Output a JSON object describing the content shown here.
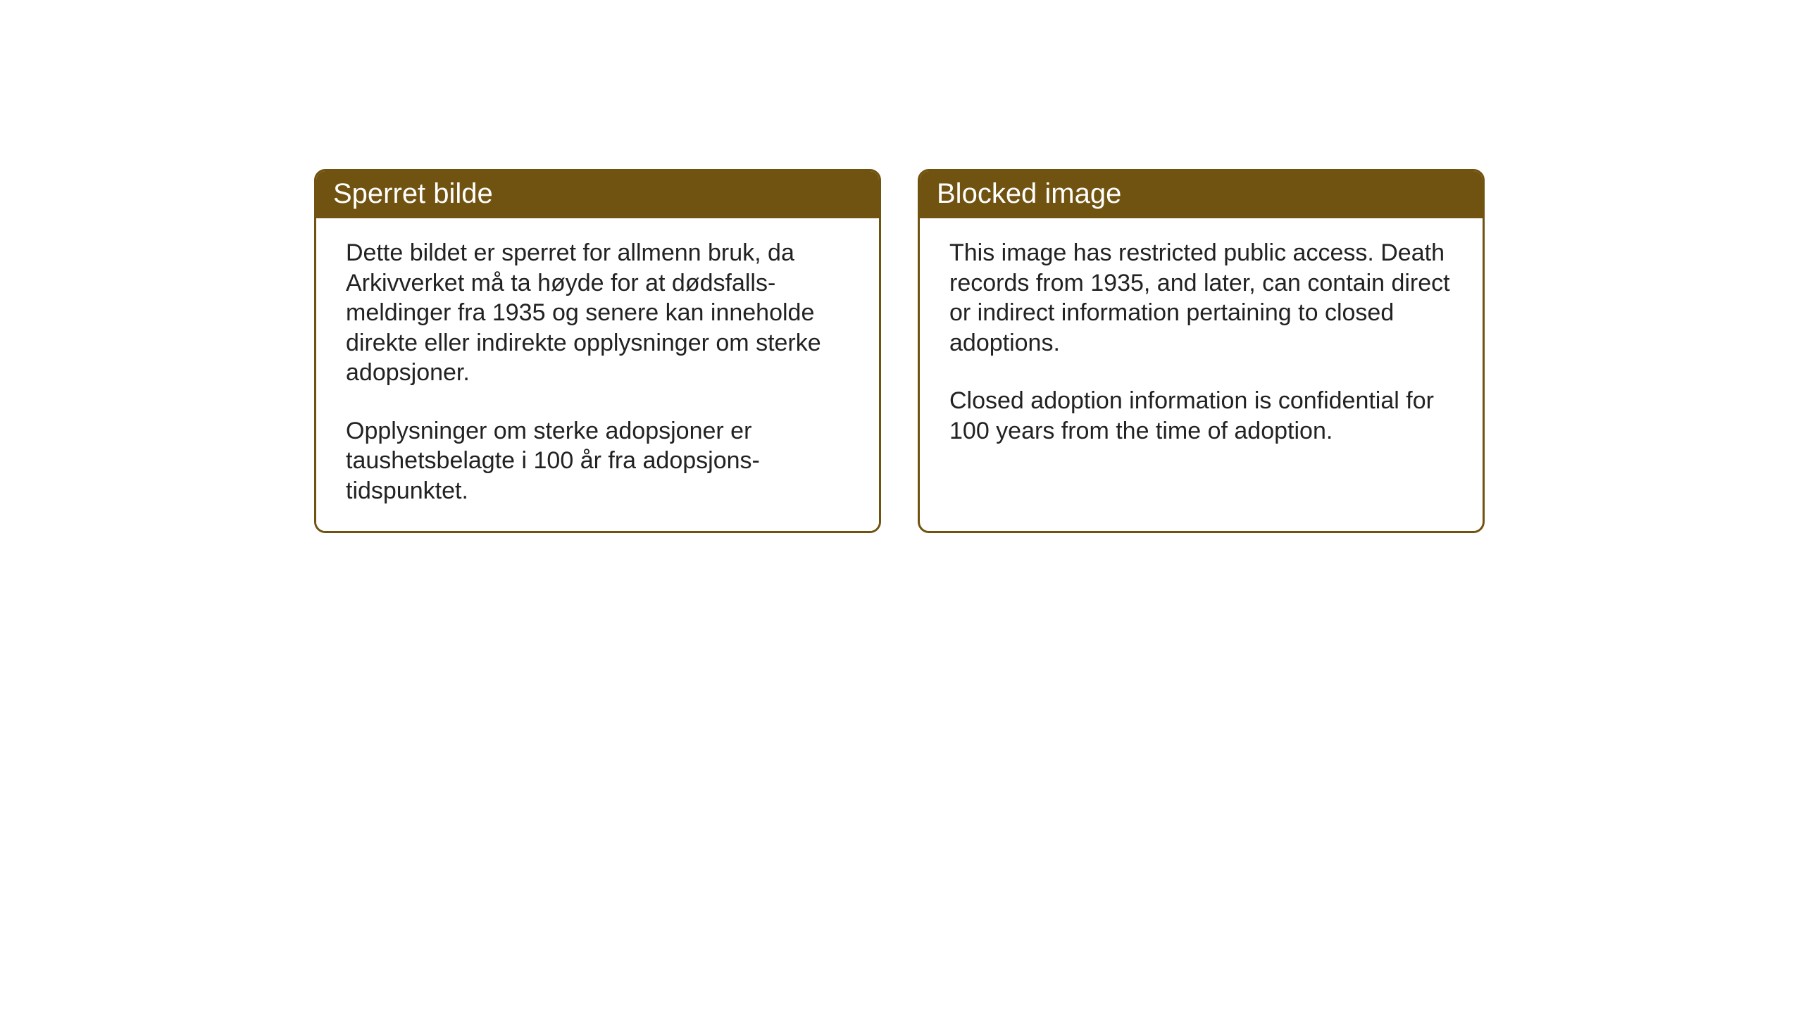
{
  "notices": {
    "norwegian": {
      "title": "Sperret bilde",
      "paragraph1": "Dette bildet er sperret for allmenn bruk, da Arkivverket må ta høyde for at dødsfalls-meldinger fra 1935 og senere kan inneholde direkte eller indirekte opplysninger om sterke adopsjoner.",
      "paragraph2": "Opplysninger om sterke adopsjoner er taushetsbelagte i 100 år fra adopsjons-tidspunktet."
    },
    "english": {
      "title": "Blocked image",
      "paragraph1": "This image has restricted public access. Death records from 1935, and later, can contain direct or indirect information pertaining to closed adoptions.",
      "paragraph2": "Closed adoption information is confidential for 100 years from the time of adoption."
    }
  },
  "styling": {
    "header_bg_color": "#715311",
    "header_text_color": "#ffffff",
    "border_color": "#715311",
    "body_bg_color": "#ffffff",
    "body_text_color": "#222222",
    "header_fontsize": 40,
    "body_fontsize": 34,
    "border_radius": 16,
    "border_width": 3
  }
}
